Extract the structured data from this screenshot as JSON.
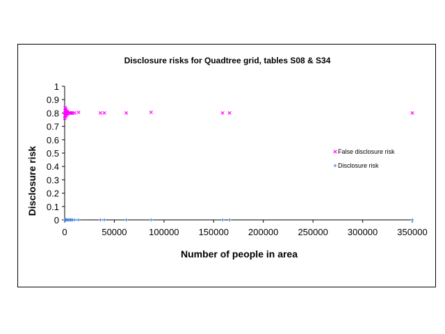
{
  "chart_data": {
    "type": "scatter",
    "title": "Disclosure risks for Quadtree grid, tables S08 & S34",
    "xlabel": "Number of people in area",
    "ylabel": "Disclosure risk",
    "xlim": [
      0,
      350000
    ],
    "ylim": [
      0,
      1
    ],
    "x_ticks": [
      "0",
      "50000",
      "100000",
      "150000",
      "200000",
      "250000",
      "300000",
      "350000"
    ],
    "y_ticks": [
      "0",
      "0.1",
      "0.2",
      "0.3",
      "0.4",
      "0.5",
      "0.6",
      "0.7",
      "0.8",
      "0.9",
      "1"
    ],
    "grid": false,
    "legend_position": "right",
    "series": [
      {
        "name": "False disclosure risk",
        "color": "#ff00ff",
        "marker": "x",
        "points": [
          [
            100,
            0.76
          ],
          [
            200,
            0.78
          ],
          [
            300,
            0.8
          ],
          [
            400,
            0.82
          ],
          [
            500,
            0.84
          ],
          [
            600,
            0.77
          ],
          [
            700,
            0.79
          ],
          [
            800,
            0.81
          ],
          [
            900,
            0.83
          ],
          [
            1000,
            0.8
          ],
          [
            1200,
            0.78
          ],
          [
            1400,
            0.82
          ],
          [
            1600,
            0.8
          ],
          [
            1800,
            0.79
          ],
          [
            2000,
            0.81
          ],
          [
            2200,
            0.8
          ],
          [
            2500,
            0.79
          ],
          [
            2800,
            0.81
          ],
          [
            3000,
            0.8
          ],
          [
            3500,
            0.8
          ],
          [
            4000,
            0.8
          ],
          [
            4500,
            0.8
          ],
          [
            5000,
            0.8
          ],
          [
            6000,
            0.8
          ],
          [
            7000,
            0.8
          ],
          [
            8000,
            0.8
          ],
          [
            10000,
            0.8
          ],
          [
            14000,
            0.805
          ],
          [
            36000,
            0.8
          ],
          [
            40000,
            0.8
          ],
          [
            62000,
            0.8
          ],
          [
            87000,
            0.805
          ],
          [
            159000,
            0.8
          ],
          [
            166000,
            0.8
          ],
          [
            350000,
            0.8
          ]
        ]
      },
      {
        "name": "Disclosure risk",
        "color": "#3f7fdf",
        "marker": "+",
        "points": [
          [
            100,
            0
          ],
          [
            500,
            0
          ],
          [
            1000,
            0
          ],
          [
            1500,
            0
          ],
          [
            2000,
            0
          ],
          [
            3000,
            0
          ],
          [
            4000,
            0
          ],
          [
            5000,
            0
          ],
          [
            6000,
            0
          ],
          [
            7000,
            0
          ],
          [
            8000,
            0
          ],
          [
            10000,
            0
          ],
          [
            14000,
            0
          ],
          [
            36000,
            0
          ],
          [
            40000,
            0
          ],
          [
            62000,
            0
          ],
          [
            87000,
            0
          ],
          [
            159000,
            0
          ],
          [
            166000,
            0
          ],
          [
            350000,
            0
          ]
        ]
      }
    ]
  }
}
